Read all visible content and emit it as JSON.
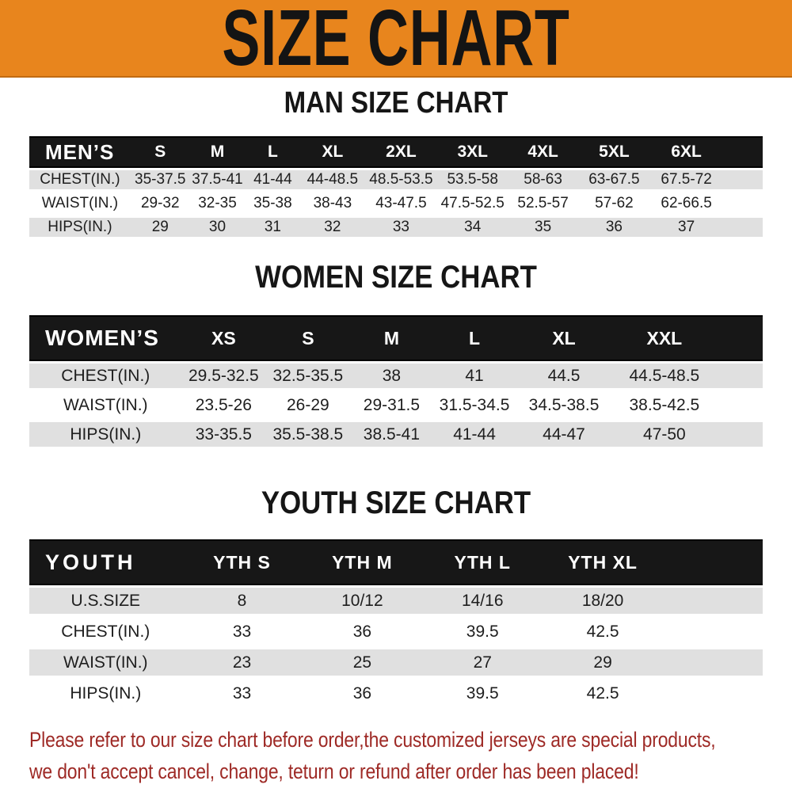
{
  "banner": {
    "title": "SIZE CHART",
    "background_color": "#E8851D",
    "text_color": "#141414"
  },
  "sections": {
    "man": {
      "title": "MAN SIZE CHART"
    },
    "women": {
      "title": "WOMEN SIZE CHART"
    },
    "youth": {
      "title": "YOUTH SIZE CHART"
    }
  },
  "tables": {
    "men": {
      "header": [
        "MEN’S",
        "S",
        "M",
        "L",
        "XL",
        "2XL",
        "3XL",
        "4XL",
        "5XL",
        "6XL"
      ],
      "rows": [
        [
          "CHEST(IN.)",
          "35-37.5",
          "37.5-41",
          "41-44",
          "44-48.5",
          "48.5-53.5",
          "53.5-58",
          "58-63",
          "63-67.5",
          "67.5-72"
        ],
        [
          "WAIST(IN.)",
          "29-32",
          "32-35",
          "35-38",
          "38-43",
          "43-47.5",
          "47.5-52.5",
          "52.5-57",
          "57-62",
          "62-66.5"
        ],
        [
          "HIPS(IN.)",
          "29",
          "30",
          "31",
          "32",
          "33",
          "34",
          "35",
          "36",
          "37"
        ]
      ]
    },
    "women": {
      "header": [
        "WOMEN’S",
        "XS",
        "S",
        "M",
        "L",
        "XL",
        "XXL"
      ],
      "rows": [
        [
          "CHEST(IN.)",
          "29.5-32.5",
          "32.5-35.5",
          "38",
          "41",
          "44.5",
          "44.5-48.5"
        ],
        [
          "WAIST(IN.)",
          "23.5-26",
          "26-29",
          "29-31.5",
          "31.5-34.5",
          "34.5-38.5",
          "38.5-42.5"
        ],
        [
          "HIPS(IN.)",
          "33-35.5",
          "35.5-38.5",
          "38.5-41",
          "41-44",
          "44-47",
          "47-50"
        ]
      ]
    },
    "youth": {
      "header": [
        "YOUTH",
        "YTH S",
        "YTH M",
        "YTH L",
        "YTH XL"
      ],
      "rows": [
        [
          "U.S.SIZE",
          "8",
          "10/12",
          "14/16",
          "18/20"
        ],
        [
          "CHEST(IN.)",
          "33",
          "36",
          "39.5",
          "42.5"
        ],
        [
          "WAIST(IN.)",
          "23",
          "25",
          "27",
          "29"
        ],
        [
          "HIPS(IN.)",
          "33",
          "36",
          "39.5",
          "42.5"
        ]
      ]
    }
  },
  "disclaimer": {
    "line1": "Please refer to our size chart before order,the customized jerseys are special products,",
    "line2": "we don't accept cancel, change, teturn or refund after order has been placed!",
    "text_color": "#9E2A26"
  },
  "colors": {
    "header_bar": "#171717",
    "alt_row_gray": "#E0E0E0",
    "banner_orange": "#E8851D"
  }
}
